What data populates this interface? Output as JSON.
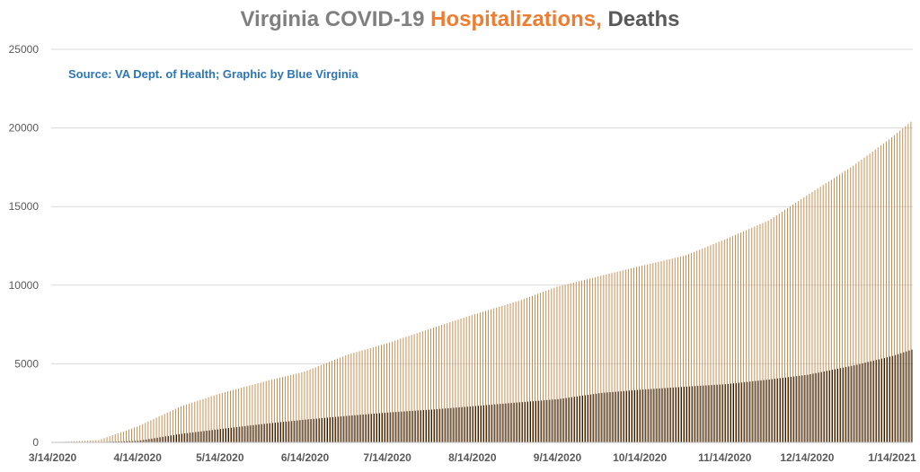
{
  "chart_data": {
    "type": "bar",
    "title": {
      "part1": "Virginia COVID-19",
      "part2": "Hospitalizations,",
      "part3": "Deaths"
    },
    "annotation": "Source: VA Dept. of Health; Graphic by Blue Virginia",
    "ylim": [
      0,
      25000
    ],
    "y_ticks": [
      "0",
      "5000",
      "10000",
      "15000",
      "20000",
      "25000"
    ],
    "x_tick_labels": [
      "3/14/2020",
      "4/14/2020",
      "5/14/2020",
      "6/14/2020",
      "7/14/2020",
      "8/14/2020",
      "9/14/2020",
      "10/14/2020",
      "11/14/2020",
      "12/14/2020",
      "1/14/2021"
    ],
    "grid": true,
    "x_range": [
      "2020-03-14",
      "2021-01-21"
    ],
    "series": [
      {
        "name": "Hospitalizations",
        "color": "#c0833f",
        "points": [
          [
            "2020-03-14",
            0
          ],
          [
            "2020-03-31",
            150
          ],
          [
            "2020-04-14",
            1000
          ],
          [
            "2020-04-30",
            2300
          ],
          [
            "2020-05-14",
            3100
          ],
          [
            "2020-05-31",
            3900
          ],
          [
            "2020-06-14",
            4500
          ],
          [
            "2020-06-30",
            5600
          ],
          [
            "2020-07-14",
            6300
          ],
          [
            "2020-07-31",
            7300
          ],
          [
            "2020-08-14",
            8100
          ],
          [
            "2020-08-31",
            9000
          ],
          [
            "2020-09-14",
            9900
          ],
          [
            "2020-09-30",
            10600
          ],
          [
            "2020-10-14",
            11200
          ],
          [
            "2020-10-31",
            11900
          ],
          [
            "2020-11-14",
            12900
          ],
          [
            "2020-11-30",
            14100
          ],
          [
            "2020-12-14",
            15700
          ],
          [
            "2020-12-31",
            17600
          ],
          [
            "2021-01-14",
            19400
          ],
          [
            "2021-01-21",
            20400
          ]
        ]
      },
      {
        "name": "Deaths",
        "color": "#1a1a1a",
        "points": [
          [
            "2020-03-14",
            0
          ],
          [
            "2020-03-31",
            20
          ],
          [
            "2020-04-14",
            100
          ],
          [
            "2020-04-30",
            550
          ],
          [
            "2020-05-14",
            850
          ],
          [
            "2020-05-31",
            1200
          ],
          [
            "2020-06-14",
            1450
          ],
          [
            "2020-06-30",
            1700
          ],
          [
            "2020-07-14",
            1900
          ],
          [
            "2020-07-31",
            2100
          ],
          [
            "2020-08-14",
            2300
          ],
          [
            "2020-08-31",
            2550
          ],
          [
            "2020-09-14",
            2750
          ],
          [
            "2020-09-30",
            3150
          ],
          [
            "2020-10-14",
            3350
          ],
          [
            "2020-10-31",
            3550
          ],
          [
            "2020-11-14",
            3700
          ],
          [
            "2020-11-30",
            4000
          ],
          [
            "2020-12-14",
            4300
          ],
          [
            "2020-12-31",
            4900
          ],
          [
            "2021-01-14",
            5500
          ],
          [
            "2021-01-21",
            5900
          ]
        ]
      }
    ]
  }
}
